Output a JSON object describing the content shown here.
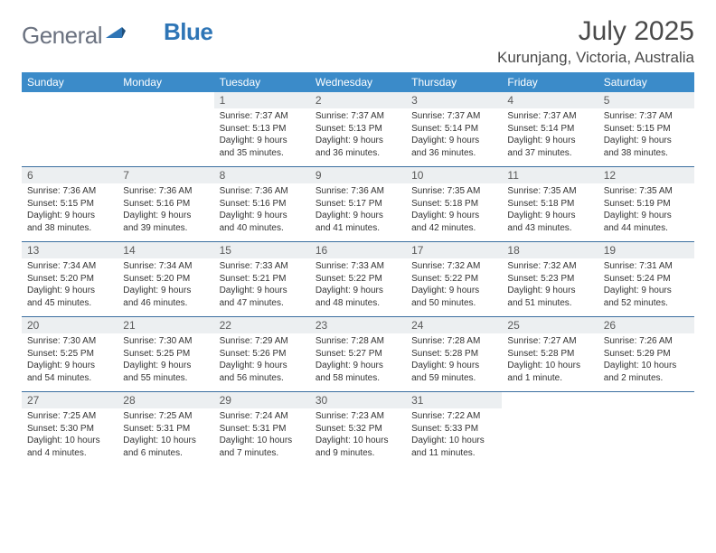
{
  "logo": {
    "text_gray": "General",
    "text_blue": "Blue"
  },
  "title": "July 2025",
  "location": "Kurunjang, Victoria, Australia",
  "colors": {
    "header_bg": "#3b8bc9",
    "header_text": "#ffffff",
    "daynum_bg": "#eceff1",
    "row_border": "#3b6fa0",
    "logo_gray": "#6b7280",
    "logo_blue": "#2e75b6",
    "body_text": "#333333"
  },
  "weekdays": [
    "Sunday",
    "Monday",
    "Tuesday",
    "Wednesday",
    "Thursday",
    "Friday",
    "Saturday"
  ],
  "weeks": [
    [
      null,
      null,
      {
        "n": "1",
        "sr": "7:37 AM",
        "ss": "5:13 PM",
        "dl": "9 hours and 35 minutes."
      },
      {
        "n": "2",
        "sr": "7:37 AM",
        "ss": "5:13 PM",
        "dl": "9 hours and 36 minutes."
      },
      {
        "n": "3",
        "sr": "7:37 AM",
        "ss": "5:14 PM",
        "dl": "9 hours and 36 minutes."
      },
      {
        "n": "4",
        "sr": "7:37 AM",
        "ss": "5:14 PM",
        "dl": "9 hours and 37 minutes."
      },
      {
        "n": "5",
        "sr": "7:37 AM",
        "ss": "5:15 PM",
        "dl": "9 hours and 38 minutes."
      }
    ],
    [
      {
        "n": "6",
        "sr": "7:36 AM",
        "ss": "5:15 PM",
        "dl": "9 hours and 38 minutes."
      },
      {
        "n": "7",
        "sr": "7:36 AM",
        "ss": "5:16 PM",
        "dl": "9 hours and 39 minutes."
      },
      {
        "n": "8",
        "sr": "7:36 AM",
        "ss": "5:16 PM",
        "dl": "9 hours and 40 minutes."
      },
      {
        "n": "9",
        "sr": "7:36 AM",
        "ss": "5:17 PM",
        "dl": "9 hours and 41 minutes."
      },
      {
        "n": "10",
        "sr": "7:35 AM",
        "ss": "5:18 PM",
        "dl": "9 hours and 42 minutes."
      },
      {
        "n": "11",
        "sr": "7:35 AM",
        "ss": "5:18 PM",
        "dl": "9 hours and 43 minutes."
      },
      {
        "n": "12",
        "sr": "7:35 AM",
        "ss": "5:19 PM",
        "dl": "9 hours and 44 minutes."
      }
    ],
    [
      {
        "n": "13",
        "sr": "7:34 AM",
        "ss": "5:20 PM",
        "dl": "9 hours and 45 minutes."
      },
      {
        "n": "14",
        "sr": "7:34 AM",
        "ss": "5:20 PM",
        "dl": "9 hours and 46 minutes."
      },
      {
        "n": "15",
        "sr": "7:33 AM",
        "ss": "5:21 PM",
        "dl": "9 hours and 47 minutes."
      },
      {
        "n": "16",
        "sr": "7:33 AM",
        "ss": "5:22 PM",
        "dl": "9 hours and 48 minutes."
      },
      {
        "n": "17",
        "sr": "7:32 AM",
        "ss": "5:22 PM",
        "dl": "9 hours and 50 minutes."
      },
      {
        "n": "18",
        "sr": "7:32 AM",
        "ss": "5:23 PM",
        "dl": "9 hours and 51 minutes."
      },
      {
        "n": "19",
        "sr": "7:31 AM",
        "ss": "5:24 PM",
        "dl": "9 hours and 52 minutes."
      }
    ],
    [
      {
        "n": "20",
        "sr": "7:30 AM",
        "ss": "5:25 PM",
        "dl": "9 hours and 54 minutes."
      },
      {
        "n": "21",
        "sr": "7:30 AM",
        "ss": "5:25 PM",
        "dl": "9 hours and 55 minutes."
      },
      {
        "n": "22",
        "sr": "7:29 AM",
        "ss": "5:26 PM",
        "dl": "9 hours and 56 minutes."
      },
      {
        "n": "23",
        "sr": "7:28 AM",
        "ss": "5:27 PM",
        "dl": "9 hours and 58 minutes."
      },
      {
        "n": "24",
        "sr": "7:28 AM",
        "ss": "5:28 PM",
        "dl": "9 hours and 59 minutes."
      },
      {
        "n": "25",
        "sr": "7:27 AM",
        "ss": "5:28 PM",
        "dl": "10 hours and 1 minute."
      },
      {
        "n": "26",
        "sr": "7:26 AM",
        "ss": "5:29 PM",
        "dl": "10 hours and 2 minutes."
      }
    ],
    [
      {
        "n": "27",
        "sr": "7:25 AM",
        "ss": "5:30 PM",
        "dl": "10 hours and 4 minutes."
      },
      {
        "n": "28",
        "sr": "7:25 AM",
        "ss": "5:31 PM",
        "dl": "10 hours and 6 minutes."
      },
      {
        "n": "29",
        "sr": "7:24 AM",
        "ss": "5:31 PM",
        "dl": "10 hours and 7 minutes."
      },
      {
        "n": "30",
        "sr": "7:23 AM",
        "ss": "5:32 PM",
        "dl": "10 hours and 9 minutes."
      },
      {
        "n": "31",
        "sr": "7:22 AM",
        "ss": "5:33 PM",
        "dl": "10 hours and 11 minutes."
      },
      null,
      null
    ]
  ],
  "labels": {
    "sunrise": "Sunrise:",
    "sunset": "Sunset:",
    "daylight": "Daylight:"
  }
}
